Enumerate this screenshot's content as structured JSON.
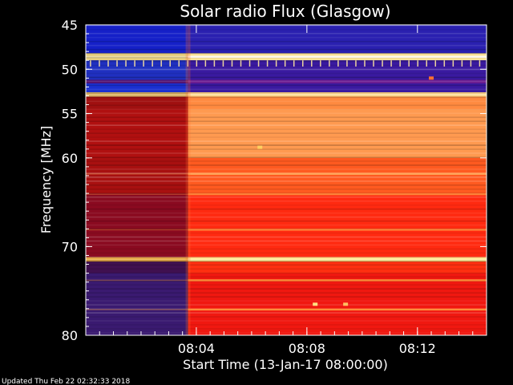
{
  "chart_data": {
    "type": "heatmap",
    "title": "Solar radio Flux (Glasgow)",
    "xlabel": "Start Time (13-Jan-17 08:00:00)",
    "ylabel": "Frequency [MHz]",
    "xlim": [
      0,
      14.5
    ],
    "ylim": [
      45,
      80
    ],
    "y_inverted": true,
    "x_ticks": [
      {
        "value": 4,
        "label": "08:04"
      },
      {
        "value": 8,
        "label": "08:08"
      },
      {
        "value": 12,
        "label": "08:12"
      }
    ],
    "y_ticks": [
      {
        "value": 45,
        "label": "45"
      },
      {
        "value": 50,
        "label": "50"
      },
      {
        "value": 55,
        "label": "55"
      },
      {
        "value": 60,
        "label": "60"
      },
      {
        "value": 70,
        "label": "70"
      },
      {
        "value": 80,
        "label": "80"
      }
    ],
    "transition_time": 3.7,
    "colormap": [
      "#1a0a8a",
      "#2c1aa0",
      "#6a1a80",
      "#b01010",
      "#e01a10",
      "#ff3a10",
      "#ff7a30",
      "#ffb060",
      "#ffe8a0"
    ],
    "bands": [
      {
        "f": [
          45,
          48.2
        ],
        "before": "#1520c8",
        "after": "#2a20b0"
      },
      {
        "f": [
          48.2,
          49.0
        ],
        "before": "#e8d080",
        "after": "#ffe69a"
      },
      {
        "f": [
          49.0,
          51.2
        ],
        "before": "#2030c0",
        "after": "#3a1aa0"
      },
      {
        "f": [
          51.2,
          51.6
        ],
        "before": "#501070",
        "after": "#6a1a90"
      },
      {
        "f": [
          51.6,
          52.6
        ],
        "before": "#1a30d0",
        "after": "#3a1aa0"
      },
      {
        "f": [
          52.6,
          53.1
        ],
        "before": "#d8b060",
        "after": "#ffd080"
      },
      {
        "f": [
          53.1,
          54.5
        ],
        "before": "#a01010",
        "after": "#ff8a40"
      },
      {
        "f": [
          54.5,
          60.0
        ],
        "before": "#b01010",
        "after": "#ff9a50"
      },
      {
        "f": [
          60.0,
          64.0
        ],
        "before": "#a81010",
        "after": "#ff5a20"
      },
      {
        "f": [
          64.0,
          71.2
        ],
        "before": "#8a0a20",
        "after": "#ff2a10"
      },
      {
        "f": [
          71.2,
          71.7
        ],
        "before": "#e0a040",
        "after": "#ffe080"
      },
      {
        "f": [
          71.7,
          73.0
        ],
        "before": "#401050",
        "after": "#ff3010"
      },
      {
        "f": [
          73.0,
          80.0
        ],
        "before": "#3a1a70",
        "after": "#f01810"
      }
    ],
    "stripes": [
      {
        "f": 48.6,
        "color": "#ffffff"
      },
      {
        "f": 52.85,
        "color": "#ffe6b0"
      },
      {
        "f": 61.8,
        "color": "#ffb060"
      },
      {
        "f": 64.1,
        "color": "#ff9040"
      },
      {
        "f": 68.1,
        "color": "#ff9040"
      },
      {
        "f": 71.45,
        "color": "#fff0b0"
      },
      {
        "f": 73.8,
        "color": "#ffa040"
      },
      {
        "f": 77.1,
        "color": "#ffa040"
      }
    ],
    "spots": [
      {
        "t": 6.3,
        "f": 58.8,
        "color": "#ffd060"
      },
      {
        "t": 8.3,
        "f": 76.5,
        "color": "#ffe080"
      },
      {
        "t": 9.4,
        "f": 76.5,
        "color": "#ffc060"
      },
      {
        "t": 12.5,
        "f": 51.0,
        "color": "#ff7030"
      }
    ]
  },
  "footer": {
    "updated": "Updated Thu Feb 22 02:32:33 2018"
  },
  "colors": {
    "background": "#000000",
    "text": "#ffffff"
  }
}
